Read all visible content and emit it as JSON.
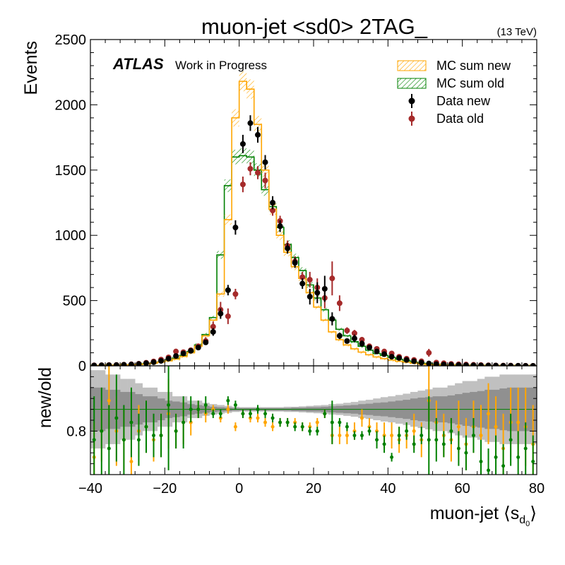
{
  "chart_data": {
    "type": "histogram",
    "title": "muon-jet <sd0> 2TAG_",
    "energy_label": "(13 TeV)",
    "atlas_label": "ATLAS",
    "atlas_sublabel": "Work in Progress",
    "xlabel_prefix": "muon-jet ",
    "xlabel_main": "s",
    "xlabel_sub": "d",
    "xlabel_subsub": "0",
    "ylabel_top": "Events",
    "ylabel_bottom": "new/old",
    "xlim": [
      -40,
      80
    ],
    "ylim_top": [
      0,
      2500
    ],
    "ylim_bottom": [
      0.7,
      0.95
    ],
    "xticks": [
      -40,
      -20,
      0,
      20,
      40,
      60,
      80
    ],
    "xtick_labels": [
      "−40",
      "−20",
      "0",
      "20",
      "40",
      "60",
      "80"
    ],
    "yticks_top": [
      0,
      500,
      1000,
      1500,
      2000,
      2500
    ],
    "yticks_bottom": [
      0.8
    ],
    "ytick_labels_bottom": [
      "0.8"
    ],
    "legend": {
      "mc_new": "MC sum new",
      "mc_old": "MC sum old",
      "data_new": "Data new",
      "data_old": "Data old"
    },
    "colors": {
      "mc_new": "#ffa500",
      "mc_old": "#008000",
      "data_new": "#000000",
      "data_old": "#a52a2a",
      "ratio_old": "#008000",
      "ratio_new": "#ffa500",
      "band_light": "#c0c0c0",
      "band_dark": "#909090"
    },
    "bin_edges_start": -40,
    "bin_width": 2,
    "mc_new": [
      2,
      3,
      4,
      5,
      6,
      8,
      10,
      14,
      20,
      28,
      38,
      52,
      72,
      100,
      150,
      230,
      350,
      550,
      1120,
      1900,
      2180,
      2120,
      1850,
      1500,
      1200,
      1000,
      870,
      760,
      670,
      560,
      450,
      350,
      260,
      200,
      160,
      130,
      105,
      85,
      68,
      55,
      44,
      35,
      27,
      20,
      14,
      10,
      7,
      5,
      4,
      3,
      2,
      2,
      1,
      1,
      1,
      1,
      0,
      0,
      0,
      0
    ],
    "mc_old": [
      3,
      4,
      5,
      6,
      7,
      9,
      12,
      16,
      22,
      30,
      42,
      58,
      78,
      110,
      160,
      240,
      370,
      850,
      1380,
      1600,
      1610,
      1600,
      1500,
      1350,
      1220,
      1060,
      930,
      830,
      730,
      620,
      520,
      430,
      350,
      280,
      230,
      185,
      150,
      120,
      95,
      80,
      65,
      50,
      38,
      28,
      20,
      15,
      11,
      8,
      6,
      5,
      4,
      3,
      2,
      2,
      1,
      1,
      0,
      0,
      0,
      0
    ],
    "data_new": {
      "x": [
        -39,
        -37,
        -35,
        -33,
        -31,
        -29,
        -27,
        -25,
        -23,
        -21,
        -19,
        -17,
        -15,
        -13,
        -11,
        -9,
        -7,
        -5,
        -3,
        -1,
        1,
        3,
        5,
        7,
        9,
        11,
        13,
        15,
        17,
        19,
        21,
        23,
        25,
        27,
        29,
        31,
        33,
        35,
        37,
        39,
        41,
        43,
        45,
        47,
        49,
        51,
        53,
        55,
        57,
        59,
        61,
        63,
        65,
        67,
        69,
        71,
        73,
        75,
        77,
        79
      ],
      "y": [
        3,
        4,
        5,
        6,
        8,
        10,
        14,
        20,
        28,
        38,
        55,
        75,
        95,
        115,
        140,
        180,
        260,
        400,
        580,
        1060,
        1700,
        1860,
        1770,
        1560,
        1250,
        1070,
        900,
        790,
        630,
        530,
        560,
        590,
        360,
        230,
        190,
        210,
        170,
        140,
        110,
        90,
        70,
        60,
        45,
        35,
        25,
        18,
        13,
        10,
        8,
        6,
        5,
        4,
        3,
        2,
        2,
        1,
        1,
        1,
        0,
        0
      ],
      "err": [
        2,
        2,
        2,
        3,
        3,
        3,
        4,
        5,
        6,
        7,
        8,
        10,
        12,
        14,
        15,
        20,
        30,
        40,
        40,
        55,
        70,
        60,
        60,
        55,
        50,
        45,
        40,
        40,
        40,
        60,
        80,
        100,
        50,
        25,
        20,
        30,
        25,
        20,
        15,
        14,
        12,
        10,
        8,
        7,
        6,
        5,
        4,
        3,
        3,
        3,
        3,
        2,
        2,
        2,
        2,
        1,
        1,
        1,
        1,
        1
      ]
    },
    "data_old": {
      "x": [
        -39,
        -37,
        -35,
        -33,
        -31,
        -29,
        -27,
        -25,
        -23,
        -21,
        -19,
        -17,
        -15,
        -13,
        -11,
        -9,
        -7,
        -5,
        -3,
        -1,
        1,
        3,
        5,
        7,
        9,
        11,
        13,
        15,
        17,
        19,
        21,
        23,
        25,
        27,
        29,
        31,
        33,
        35,
        37,
        39,
        41,
        43,
        45,
        47,
        49,
        51,
        53,
        55,
        57,
        59,
        61,
        63,
        65,
        67,
        69,
        71,
        73,
        75,
        77,
        79
      ],
      "y": [
        4,
        5,
        6,
        7,
        9,
        12,
        16,
        24,
        34,
        48,
        65,
        110,
        105,
        120,
        150,
        190,
        300,
        430,
        380,
        550,
        1390,
        1510,
        1480,
        1420,
        1190,
        1110,
        920,
        800,
        680,
        660,
        600,
        520,
        670,
        480,
        270,
        250,
        200,
        150,
        130,
        110,
        95,
        70,
        55,
        45,
        35,
        100,
        25,
        20,
        15,
        12,
        10,
        8,
        6,
        4,
        3,
        2,
        2,
        1,
        1,
        0
      ],
      "err": [
        2,
        2,
        2,
        3,
        3,
        3,
        4,
        5,
        6,
        7,
        10,
        20,
        15,
        15,
        20,
        30,
        40,
        60,
        60,
        40,
        60,
        50,
        50,
        60,
        40,
        40,
        40,
        40,
        40,
        60,
        70,
        80,
        130,
        60,
        25,
        25,
        20,
        18,
        15,
        14,
        12,
        10,
        9,
        8,
        7,
        30,
        6,
        5,
        4,
        4,
        3,
        3,
        3,
        2,
        2,
        2,
        1,
        1,
        1,
        1
      ]
    },
    "ratio_old_points": {
      "x": [
        -39,
        -37,
        -35,
        -33,
        -31,
        -29,
        -27,
        -25,
        -23,
        -21,
        -19,
        -17,
        -15,
        -13,
        -11,
        -9,
        -7,
        -5,
        -3,
        -1,
        1,
        3,
        5,
        7,
        9,
        11,
        13,
        15,
        17,
        19,
        21,
        23,
        25,
        27,
        29,
        31,
        33,
        35,
        37,
        39,
        41,
        43,
        45,
        47,
        49,
        51,
        53,
        55,
        57,
        59,
        61,
        63,
        65,
        67,
        69,
        71,
        73,
        75,
        77,
        79
      ],
      "y": [
        0.78,
        0.8,
        0.76,
        0.83,
        0.78,
        0.82,
        0.78,
        0.81,
        0.79,
        0.79,
        0.86,
        0.8,
        0.82,
        0.85,
        0.85,
        0.86,
        0.84,
        0.84,
        0.87,
        0.86,
        0.84,
        0.84,
        0.85,
        0.84,
        0.83,
        0.82,
        0.82,
        0.81,
        0.81,
        0.8,
        0.8,
        0.84,
        0.82,
        0.82,
        0.81,
        0.79,
        0.79,
        0.8,
        0.78,
        0.77,
        0.74,
        0.79,
        0.8,
        0.77,
        0.79,
        0.78,
        0.78,
        0.77,
        0.8,
        0.76,
        0.75,
        0.79,
        0.73,
        0.71,
        0.74,
        0.72,
        0.78,
        0.74,
        0.76,
        0.73
      ],
      "err": [
        0.1,
        0.1,
        0.1,
        0.1,
        0.08,
        0.08,
        0.06,
        0.06,
        0.05,
        0.05,
        0.15,
        0.04,
        0.06,
        0.03,
        0.02,
        0.02,
        0.01,
        0.01,
        0.01,
        0.01,
        0.01,
        0.01,
        0.01,
        0.01,
        0.01,
        0.01,
        0.01,
        0.01,
        0.01,
        0.01,
        0.01,
        0.01,
        0.05,
        0.01,
        0.01,
        0.01,
        0.01,
        0.01,
        0.02,
        0.02,
        0.01,
        0.02,
        0.02,
        0.02,
        0.02,
        0.1,
        0.05,
        0.03,
        0.03,
        0.04,
        0.04,
        0.04,
        0.05,
        0.05,
        0.05,
        0.05,
        0.06,
        0.06,
        0.06,
        0.06
      ]
    },
    "ratio_new_points": {
      "x": [
        -39,
        -37,
        -35,
        -33,
        -31,
        -29,
        -27,
        -25,
        -23,
        -21,
        -19,
        -17,
        -15,
        -13,
        -11,
        -9,
        -7,
        -5,
        -3,
        -1,
        1,
        3,
        5,
        7,
        9,
        11,
        13,
        15,
        17,
        19,
        21,
        23,
        25,
        27,
        29,
        31,
        33,
        35,
        37,
        39,
        41,
        43,
        45,
        47,
        49,
        51,
        53,
        55,
        57,
        59,
        61,
        63,
        65,
        67,
        69,
        71,
        73,
        75,
        77,
        79
      ],
      "y": [
        0.74,
        0.8,
        0.87,
        0.8,
        0.78,
        0.73,
        0.8,
        0.81,
        0.78,
        0.79,
        0.84,
        0.8,
        0.82,
        0.82,
        0.85,
        0.84,
        0.85,
        0.83,
        0.85,
        0.81,
        0.84,
        0.83,
        0.83,
        0.82,
        0.81,
        0.82,
        0.82,
        0.82,
        0.81,
        0.81,
        0.82,
        0.84,
        0.79,
        0.79,
        0.79,
        0.8,
        0.83,
        0.81,
        0.8,
        0.79,
        0.79,
        0.78,
        0.79,
        0.8,
        0.78,
        0.87,
        0.82,
        0.79,
        0.78,
        0.81,
        0.77,
        0.81,
        0.79,
        0.84,
        0.81,
        0.76,
        0.82,
        0.82,
        0.81,
        0.77
      ],
      "err": [
        0.08,
        0.07,
        0.09,
        0.08,
        0.07,
        0.07,
        0.06,
        0.06,
        0.05,
        0.05,
        0.08,
        0.04,
        0.05,
        0.03,
        0.02,
        0.02,
        0.01,
        0.01,
        0.01,
        0.01,
        0.01,
        0.01,
        0.01,
        0.01,
        0.01,
        0.01,
        0.01,
        0.01,
        0.01,
        0.01,
        0.01,
        0.01,
        0.02,
        0.02,
        0.02,
        0.02,
        0.02,
        0.02,
        0.02,
        0.03,
        0.03,
        0.03,
        0.03,
        0.04,
        0.04,
        0.1,
        0.05,
        0.05,
        0.05,
        0.06,
        0.06,
        0.06,
        0.07,
        0.07,
        0.07,
        0.08,
        0.08,
        0.08,
        0.09,
        0.09
      ]
    },
    "ratio_band_light": [
      0.09,
      0.09,
      0.08,
      0.08,
      0.07,
      0.07,
      0.06,
      0.05,
      0.05,
      0.04,
      0.04,
      0.03,
      0.03,
      0.02,
      0.02,
      0.015,
      0.012,
      0.01,
      0.008,
      0.006,
      0.005,
      0.005,
      0.005,
      0.005,
      0.005,
      0.005,
      0.006,
      0.006,
      0.007,
      0.008,
      0.009,
      0.01,
      0.012,
      0.013,
      0.015,
      0.017,
      0.02,
      0.022,
      0.025,
      0.028,
      0.03,
      0.033,
      0.036,
      0.04,
      0.043,
      0.046,
      0.05,
      0.05,
      0.055,
      0.06,
      0.065,
      0.065,
      0.07,
      0.075,
      0.075,
      0.08,
      0.08,
      0.08,
      0.08,
      0.08
    ],
    "ratio_band_dark": [
      0.05,
      0.05,
      0.045,
      0.045,
      0.04,
      0.04,
      0.035,
      0.03,
      0.03,
      0.025,
      0.02,
      0.018,
      0.016,
      0.012,
      0.01,
      0.008,
      0.006,
      0.005,
      0.004,
      0.003,
      0.003,
      0.003,
      0.003,
      0.003,
      0.003,
      0.003,
      0.003,
      0.004,
      0.004,
      0.005,
      0.005,
      0.006,
      0.007,
      0.008,
      0.009,
      0.01,
      0.012,
      0.013,
      0.015,
      0.016,
      0.018,
      0.02,
      0.022,
      0.025,
      0.027,
      0.028,
      0.03,
      0.03,
      0.032,
      0.035,
      0.038,
      0.04,
      0.042,
      0.045,
      0.045,
      0.048,
      0.05,
      0.05,
      0.05,
      0.05
    ]
  }
}
